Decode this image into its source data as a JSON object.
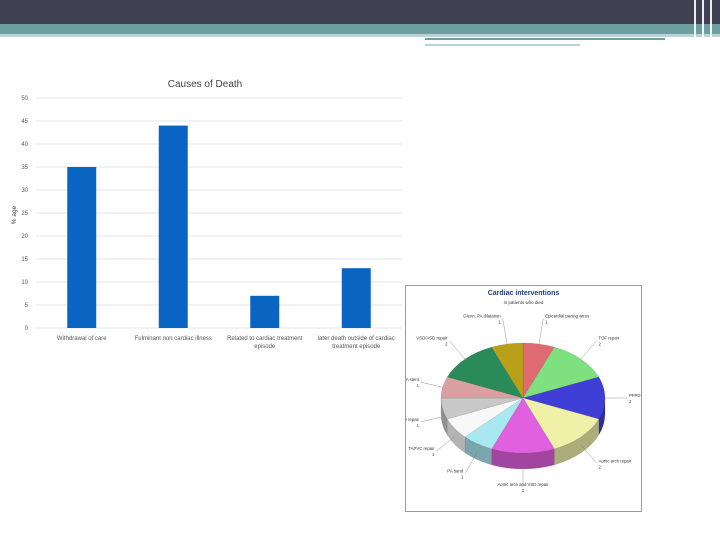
{
  "theme": {
    "accent": "#6d9fa0",
    "header": "#3f4051",
    "bar_color": "#0a64c2"
  },
  "chart_data": [
    {
      "type": "bar",
      "title": "Causes of Death",
      "ylabel": "% age",
      "xlabel": "",
      "ylim": [
        0,
        50
      ],
      "yticks": [
        0,
        5,
        10,
        15,
        20,
        25,
        30,
        35,
        40,
        45,
        50
      ],
      "grid": true,
      "categories": [
        "Withdrawal of care",
        "Fulminant non cardiac illness",
        "Related to cardiac treatment episode",
        "later death outside of cardiac treatment episode"
      ],
      "category_lines": [
        [
          "Withdrawal of care"
        ],
        [
          "Fulminant non cardiac illness"
        ],
        [
          "Related to cardiac treatment",
          "episode"
        ],
        [
          "later death outside of cardiac",
          "treatment episode"
        ]
      ],
      "values": [
        35,
        44,
        7,
        13
      ]
    },
    {
      "type": "pie",
      "title": "Cardiac interventions",
      "subtitle": "in patients who died",
      "slices": [
        {
          "label": "Epicardial pacing wires",
          "value": 1,
          "color": "#e06a72"
        },
        {
          "label": "TOF repair",
          "value": 2,
          "color": "#7fe07f"
        },
        {
          "label": "PFPD repair",
          "value": 2,
          "color": "#3f3fd8"
        },
        {
          "label": "Aortic arch repair",
          "value": 2,
          "color": "#f0f0a8"
        },
        {
          "label": "Aortic arch and VSD repair",
          "value": 2,
          "color": "#e060e0"
        },
        {
          "label": "PA band",
          "value": 1,
          "color": "#a8e8f0"
        },
        {
          "label": "TAPVC repair",
          "value": 1,
          "color": "#f8f8f8"
        },
        {
          "label": "Norwood/RA/PVD repair",
          "value": 1,
          "color": "#c8c8c8"
        },
        {
          "label": "Average PDA stent",
          "value": 1,
          "color": "#d8a0a0"
        },
        {
          "label": "VSD/ASD repair",
          "value": 2,
          "color": "#2a8a5a"
        },
        {
          "label": "Glenn, PA dilatation",
          "value": 1,
          "color": "#b8a018"
        }
      ]
    }
  ]
}
